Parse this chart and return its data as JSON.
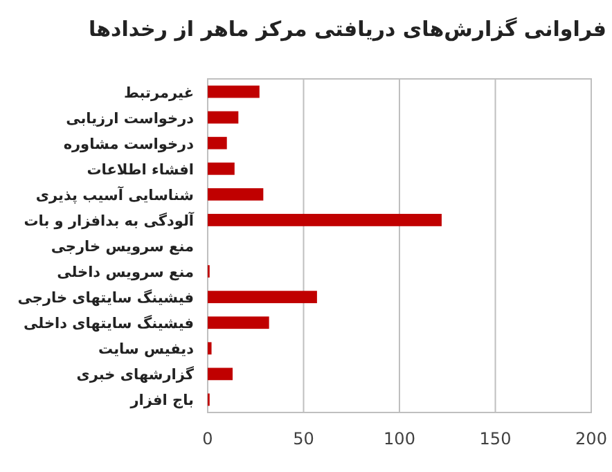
{
  "chart_data": {
    "type": "bar",
    "orientation": "horizontal",
    "title": "فراوانی گزارش‌های دریافتی مرکز ماهر از رخدادها",
    "categories": [
      "غیرمرتبط",
      "درخواست ارزیابی",
      "درخواست مشاوره",
      "افشاء اطلاعات",
      "شناسایی آسیب پذیری",
      "آلودگی به بدافزار و بات",
      "منع سرویس خارجی",
      "منع سرویس داخلی",
      "فیشینگ سایتهای خارجی",
      "فیشینگ سایتهای داخلی",
      "دیفیس سایت",
      "گزارشهای خبری",
      "باج افزار"
    ],
    "values": [
      27,
      16,
      10,
      14,
      29,
      122,
      0,
      1,
      57,
      32,
      2,
      13,
      1
    ],
    "color": "#c00000",
    "xlim": [
      0,
      200
    ],
    "xticks": [
      0,
      50,
      100,
      150,
      200
    ],
    "grid": "x"
  }
}
